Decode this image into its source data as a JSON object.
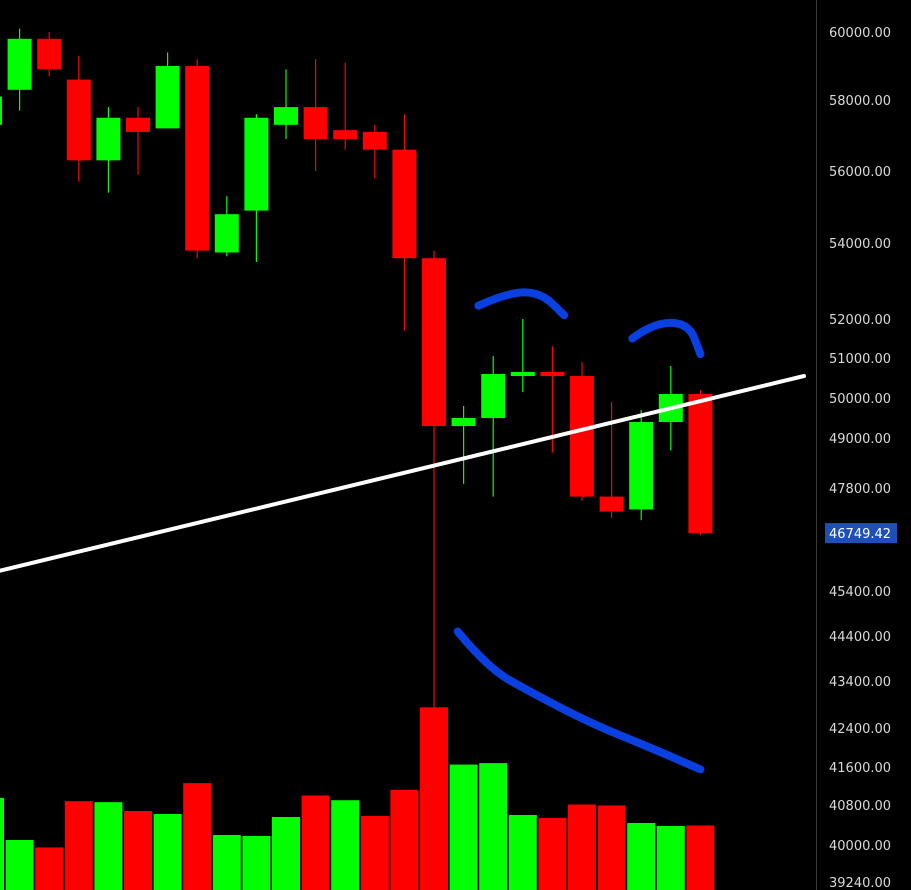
{
  "chart_data": {
    "type": "candlestick",
    "title": "",
    "xlabel": "",
    "ylabel": "",
    "ylim": [
      39240,
      60800
    ],
    "y_ticks": [
      {
        "value": 60000,
        "label": "60000.00"
      },
      {
        "value": 58000,
        "label": "58000.00"
      },
      {
        "value": 56000,
        "label": "56000.00"
      },
      {
        "value": 54000,
        "label": "54000.00"
      },
      {
        "value": 52000,
        "label": "52000.00"
      },
      {
        "value": 51000,
        "label": "51000.00"
      },
      {
        "value": 50000,
        "label": "50000.00"
      },
      {
        "value": 49000,
        "label": "49000.00"
      },
      {
        "value": 47800,
        "label": "47800.00"
      },
      {
        "value": 45400,
        "label": "45400.00"
      },
      {
        "value": 44400,
        "label": "44400.00"
      },
      {
        "value": 43400,
        "label": "43400.00"
      },
      {
        "value": 42400,
        "label": "42400.00"
      },
      {
        "value": 41600,
        "label": "41600.00"
      },
      {
        "value": 40800,
        "label": "40800.00"
      },
      {
        "value": 40000,
        "label": "40000.00"
      },
      {
        "value": 39240,
        "label": "39240.00"
      }
    ],
    "last_price": {
      "value": 46749.42,
      "label": "46749.42"
    },
    "grid": false,
    "legend": "none",
    "colors": {
      "up": "#00ff00",
      "down": "#ff0000",
      "trendline": "#ffffff",
      "annotation": "#0a3fe0",
      "badge": "#1e4fb5",
      "background": "#000000"
    },
    "candles": [
      {
        "open": 57300,
        "high": 57900,
        "low": 57150,
        "close": 58100
      },
      {
        "open": 58300,
        "high": 60100,
        "low": 57700,
        "close": 59800
      },
      {
        "open": 59800,
        "high": 60000,
        "low": 58700,
        "close": 58900
      },
      {
        "open": 58600,
        "high": 59300,
        "low": 55700,
        "close": 56300
      },
      {
        "open": 56300,
        "high": 57800,
        "low": 55400,
        "close": 57500
      },
      {
        "open": 57500,
        "high": 57800,
        "low": 55900,
        "close": 57100
      },
      {
        "open": 57200,
        "high": 59400,
        "low": 57200,
        "close": 59000
      },
      {
        "open": 59000,
        "high": 59200,
        "low": 53600,
        "close": 53800
      },
      {
        "open": 53750,
        "high": 55300,
        "low": 53650,
        "close": 54800
      },
      {
        "open": 54900,
        "high": 57600,
        "low": 53500,
        "close": 57500
      },
      {
        "open": 57300,
        "high": 58900,
        "low": 56900,
        "close": 57800
      },
      {
        "open": 57800,
        "high": 59200,
        "low": 56000,
        "close": 56900
      },
      {
        "open": 57150,
        "high": 59100,
        "low": 56600,
        "close": 56900
      },
      {
        "open": 57100,
        "high": 57300,
        "low": 55800,
        "close": 56600
      },
      {
        "open": 56600,
        "high": 57600,
        "low": 51700,
        "close": 53600
      },
      {
        "open": 53600,
        "high": 53800,
        "low": 39450,
        "close": 49300
      },
      {
        "open": 49300,
        "high": 49800,
        "low": 47900,
        "close": 49500
      },
      {
        "open": 49500,
        "high": 51050,
        "low": 47600,
        "close": 50600
      },
      {
        "open": 50550,
        "high": 52000,
        "low": 50150,
        "close": 50650
      },
      {
        "open": 50650,
        "high": 51300,
        "low": 48650,
        "close": 50550
      },
      {
        "open": 50550,
        "high": 50900,
        "low": 47500,
        "close": 47600
      },
      {
        "open": 47600,
        "high": 49900,
        "low": 47100,
        "close": 47250
      },
      {
        "open": 47300,
        "high": 49700,
        "low": 47050,
        "close": 49400
      },
      {
        "open": 49400,
        "high": 50800,
        "low": 48700,
        "close": 50100
      },
      {
        "open": 50100,
        "high": 50200,
        "low": 46700,
        "close": 46749.42
      }
    ],
    "volume": [
      {
        "value": 40950,
        "dir": "up"
      },
      {
        "value": 40100,
        "dir": "up"
      },
      {
        "value": 39950,
        "dir": "down"
      },
      {
        "value": 40880,
        "dir": "down"
      },
      {
        "value": 40860,
        "dir": "up"
      },
      {
        "value": 40680,
        "dir": "down"
      },
      {
        "value": 40620,
        "dir": "up"
      },
      {
        "value": 41260,
        "dir": "down"
      },
      {
        "value": 40200,
        "dir": "up"
      },
      {
        "value": 40180,
        "dir": "up"
      },
      {
        "value": 40560,
        "dir": "up"
      },
      {
        "value": 41000,
        "dir": "down"
      },
      {
        "value": 40900,
        "dir": "up"
      },
      {
        "value": 40580,
        "dir": "down"
      },
      {
        "value": 41120,
        "dir": "down"
      },
      {
        "value": 42840,
        "dir": "down"
      },
      {
        "value": 41650,
        "dir": "up"
      },
      {
        "value": 41680,
        "dir": "up"
      },
      {
        "value": 40600,
        "dir": "up"
      },
      {
        "value": 40540,
        "dir": "down"
      },
      {
        "value": 40810,
        "dir": "down"
      },
      {
        "value": 40790,
        "dir": "down"
      },
      {
        "value": 40440,
        "dir": "up"
      },
      {
        "value": 40380,
        "dir": "up"
      },
      {
        "value": 40390,
        "dir": "down"
      }
    ],
    "trendline": {
      "from": {
        "candle": -0.1,
        "value": 45800
      },
      "to": {
        "candle": 27.5,
        "value": 50550
      }
    },
    "annotations": [
      {
        "name": "arc-annotation-left",
        "shape": "arc",
        "points": [
          [
            16.5,
            52350
          ],
          [
            17.5,
            52700
          ],
          [
            18.6,
            52700
          ],
          [
            19.4,
            52100
          ]
        ]
      },
      {
        "name": "arc-annotation-right",
        "shape": "arc",
        "points": [
          [
            21.7,
            51500
          ],
          [
            22.4,
            51900
          ],
          [
            23.6,
            51900
          ],
          [
            24.0,
            51100
          ]
        ]
      },
      {
        "name": "down-stroke-annotation",
        "shape": "stroke",
        "points": [
          [
            15.8,
            44500
          ],
          [
            16.8,
            43700
          ],
          [
            18.3,
            43150
          ],
          [
            20.3,
            42500
          ],
          [
            22.3,
            42000
          ],
          [
            24.0,
            41550
          ]
        ]
      }
    ]
  }
}
